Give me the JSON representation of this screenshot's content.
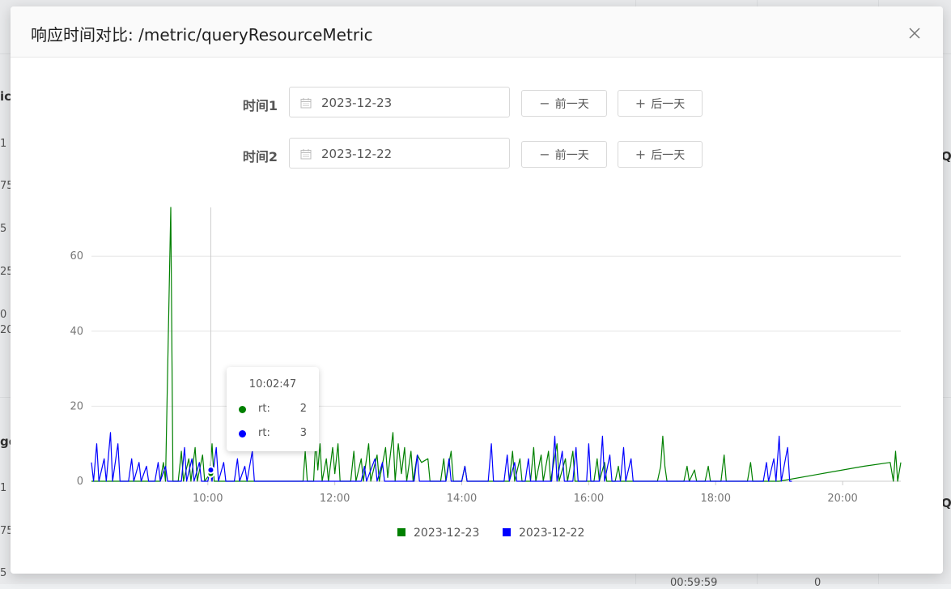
{
  "modal": {
    "title": "响应时间对比: /metric/queryResourceMetric",
    "close_icon": "close-icon"
  },
  "form": {
    "row1": {
      "label": "时间1",
      "date": "2023-12-23",
      "prev_label": "前一天",
      "next_label": "后一天"
    },
    "row2": {
      "label": "时间2",
      "date": "2023-12-22",
      "prev_label": "前一天",
      "next_label": "后一天"
    }
  },
  "tooltip": {
    "time": "10:02:47",
    "rows": [
      {
        "name": "rt:",
        "value": "2",
        "color": "#008000"
      },
      {
        "name": "rt:",
        "value": "3",
        "color": "#0000ff"
      }
    ]
  },
  "background": {
    "fragments": [
      "ic",
      "1",
      "75",
      "5",
      "25",
      "0",
      "20",
      "ge",
      "1",
      "75",
      "5",
      "Q",
      "Q",
      "00:59:59",
      "0"
    ]
  },
  "chart_data": {
    "type": "line",
    "title": "",
    "xlabel": "",
    "ylabel": "",
    "ylim": [
      0,
      73
    ],
    "xlim": [
      "08:10",
      "20:55"
    ],
    "yticks": [
      0,
      20,
      40,
      60
    ],
    "xticks": [
      "10:00",
      "12:00",
      "14:00",
      "16:00",
      "18:00",
      "20:00"
    ],
    "grid": true,
    "legend_position": "bottom",
    "crosshair_x": "10:02:47",
    "series": [
      {
        "name": "2023-12-23",
        "color": "#008000",
        "points": [
          [
            "08:10",
            0
          ],
          [
            "09:15",
            0
          ],
          [
            "09:18",
            5
          ],
          [
            "09:20",
            0
          ],
          [
            "09:25",
            73
          ],
          [
            "09:27",
            0
          ],
          [
            "09:32",
            0
          ],
          [
            "09:35",
            8
          ],
          [
            "09:37",
            0
          ],
          [
            "09:42",
            6
          ],
          [
            "09:44",
            0
          ],
          [
            "09:48",
            9
          ],
          [
            "09:50",
            0
          ],
          [
            "09:55",
            7
          ],
          [
            "09:57",
            0
          ],
          [
            "10:02",
            2
          ],
          [
            "10:04",
            10
          ],
          [
            "10:06",
            0
          ],
          [
            "10:12",
            0
          ],
          [
            "11:30",
            0
          ],
          [
            "11:32",
            8
          ],
          [
            "11:34",
            0
          ],
          [
            "11:40",
            0
          ],
          [
            "11:42",
            11
          ],
          [
            "11:44",
            3
          ],
          [
            "11:46",
            10
          ],
          [
            "11:48",
            0
          ],
          [
            "11:52",
            6
          ],
          [
            "11:54",
            0
          ],
          [
            "11:58",
            9
          ],
          [
            "12:00",
            2
          ],
          [
            "12:03",
            10
          ],
          [
            "12:05",
            0
          ],
          [
            "12:15",
            0
          ],
          [
            "12:18",
            8
          ],
          [
            "12:20",
            0
          ],
          [
            "12:25",
            6
          ],
          [
            "12:27",
            0
          ],
          [
            "12:32",
            10
          ],
          [
            "12:34",
            0
          ],
          [
            "12:40",
            7
          ],
          [
            "12:42",
            0
          ],
          [
            "12:48",
            9
          ],
          [
            "12:50",
            1
          ],
          [
            "12:55",
            13
          ],
          [
            "12:57",
            0
          ],
          [
            "13:00",
            10
          ],
          [
            "13:03",
            2
          ],
          [
            "13:06",
            9
          ],
          [
            "13:08",
            0
          ],
          [
            "13:12",
            8
          ],
          [
            "13:14",
            0
          ],
          [
            "13:18",
            7
          ],
          [
            "13:22",
            5
          ],
          [
            "13:28",
            6
          ],
          [
            "13:30",
            0
          ],
          [
            "13:40",
            0
          ],
          [
            "13:43",
            6
          ],
          [
            "13:45",
            0
          ],
          [
            "13:50",
            8
          ],
          [
            "13:52",
            0
          ],
          [
            "14:00",
            0
          ],
          [
            "14:03",
            4
          ],
          [
            "14:05",
            0
          ],
          [
            "14:45",
            0
          ],
          [
            "14:48",
            8
          ],
          [
            "14:50",
            0
          ],
          [
            "14:55",
            6
          ],
          [
            "14:57",
            0
          ],
          [
            "15:05",
            0
          ],
          [
            "15:08",
            9
          ],
          [
            "15:10",
            0
          ],
          [
            "15:15",
            7
          ],
          [
            "15:17",
            0
          ],
          [
            "15:22",
            8
          ],
          [
            "15:24",
            0
          ],
          [
            "15:30",
            10
          ],
          [
            "15:32",
            0
          ],
          [
            "15:38",
            6
          ],
          [
            "15:40",
            0
          ],
          [
            "15:45",
            8
          ],
          [
            "15:47",
            0
          ],
          [
            "16:05",
            0
          ],
          [
            "16:08",
            6
          ],
          [
            "16:10",
            0
          ],
          [
            "16:15",
            5
          ],
          [
            "16:17",
            0
          ],
          [
            "16:25",
            0
          ],
          [
            "16:28",
            4
          ],
          [
            "16:30",
            0
          ],
          [
            "17:05",
            0
          ],
          [
            "17:08",
            4
          ],
          [
            "17:10",
            12
          ],
          [
            "17:12",
            4
          ],
          [
            "17:14",
            0
          ],
          [
            "17:30",
            0
          ],
          [
            "17:33",
            4
          ],
          [
            "17:35",
            0
          ],
          [
            "17:40",
            3
          ],
          [
            "17:42",
            0
          ],
          [
            "17:50",
            0
          ],
          [
            "17:53",
            4
          ],
          [
            "17:55",
            0
          ],
          [
            "18:05",
            0
          ],
          [
            "18:08",
            7
          ],
          [
            "18:10",
            0
          ],
          [
            "18:30",
            0
          ],
          [
            "18:33",
            5
          ],
          [
            "18:35",
            0
          ],
          [
            "19:00",
            0
          ],
          [
            "19:40",
            2
          ],
          [
            "20:20",
            4
          ],
          [
            "20:45",
            5
          ],
          [
            "20:48",
            0
          ],
          [
            "20:50",
            8
          ],
          [
            "20:52",
            0
          ],
          [
            "20:55",
            5
          ]
        ]
      },
      {
        "name": "2023-12-22",
        "color": "#0000ff",
        "points": [
          [
            "08:10",
            5
          ],
          [
            "08:12",
            0
          ],
          [
            "08:15",
            10
          ],
          [
            "08:17",
            0
          ],
          [
            "08:22",
            6
          ],
          [
            "08:24",
            0
          ],
          [
            "08:28",
            13
          ],
          [
            "08:30",
            0
          ],
          [
            "08:35",
            10
          ],
          [
            "08:37",
            0
          ],
          [
            "08:45",
            0
          ],
          [
            "08:48",
            6
          ],
          [
            "08:50",
            0
          ],
          [
            "08:55",
            5
          ],
          [
            "08:57",
            0
          ],
          [
            "09:02",
            4
          ],
          [
            "09:04",
            0
          ],
          [
            "09:10",
            0
          ],
          [
            "09:13",
            5
          ],
          [
            "09:15",
            0
          ],
          [
            "09:20",
            4
          ],
          [
            "09:22",
            0
          ],
          [
            "09:35",
            0
          ],
          [
            "09:38",
            9
          ],
          [
            "09:40",
            0
          ],
          [
            "09:45",
            6
          ],
          [
            "09:47",
            0
          ],
          [
            "09:52",
            5
          ],
          [
            "09:54",
            0
          ],
          [
            "10:00",
            0
          ],
          [
            "10:02",
            3
          ],
          [
            "10:04",
            0
          ],
          [
            "10:08",
            9
          ],
          [
            "10:10",
            0
          ],
          [
            "10:15",
            5
          ],
          [
            "10:17",
            0
          ],
          [
            "10:25",
            0
          ],
          [
            "10:28",
            6
          ],
          [
            "10:30",
            0
          ],
          [
            "10:35",
            4
          ],
          [
            "10:37",
            0
          ],
          [
            "10:42",
            8
          ],
          [
            "10:44",
            0
          ],
          [
            "12:25",
            0
          ],
          [
            "12:28",
            4
          ],
          [
            "12:30",
            0
          ],
          [
            "12:38",
            6
          ],
          [
            "12:40",
            0
          ],
          [
            "12:45",
            5
          ],
          [
            "12:47",
            0
          ],
          [
            "13:15",
            0
          ],
          [
            "13:18",
            7
          ],
          [
            "13:20",
            0
          ],
          [
            "13:45",
            0
          ],
          [
            "13:48",
            6
          ],
          [
            "13:50",
            0
          ],
          [
            "14:00",
            0
          ],
          [
            "14:03",
            4
          ],
          [
            "14:05",
            0
          ],
          [
            "14:25",
            0
          ],
          [
            "14:28",
            10
          ],
          [
            "14:30",
            0
          ],
          [
            "14:40",
            0
          ],
          [
            "14:43",
            7
          ],
          [
            "14:45",
            0
          ],
          [
            "14:50",
            5
          ],
          [
            "14:52",
            0
          ],
          [
            "15:00",
            0
          ],
          [
            "15:03",
            6
          ],
          [
            "15:05",
            0
          ],
          [
            "15:25",
            0
          ],
          [
            "15:28",
            12
          ],
          [
            "15:30",
            0
          ],
          [
            "15:35",
            8
          ],
          [
            "15:37",
            0
          ],
          [
            "15:45",
            0
          ],
          [
            "15:48",
            9
          ],
          [
            "15:50",
            0
          ],
          [
            "15:58",
            0
          ],
          [
            "16:00",
            10
          ],
          [
            "16:02",
            0
          ],
          [
            "16:10",
            0
          ],
          [
            "16:13",
            12
          ],
          [
            "16:15",
            0
          ],
          [
            "16:20",
            7
          ],
          [
            "16:22",
            0
          ],
          [
            "16:30",
            0
          ],
          [
            "16:33",
            9
          ],
          [
            "16:35",
            0
          ],
          [
            "16:40",
            6
          ],
          [
            "16:42",
            0
          ],
          [
            "18:45",
            0
          ],
          [
            "18:48",
            5
          ],
          [
            "18:50",
            0
          ],
          [
            "18:55",
            6
          ],
          [
            "18:57",
            0
          ],
          [
            "19:00",
            12
          ],
          [
            "19:02",
            0
          ],
          [
            "19:08",
            9
          ],
          [
            "19:10",
            0
          ],
          [
            "19:12",
            0
          ]
        ]
      }
    ]
  }
}
